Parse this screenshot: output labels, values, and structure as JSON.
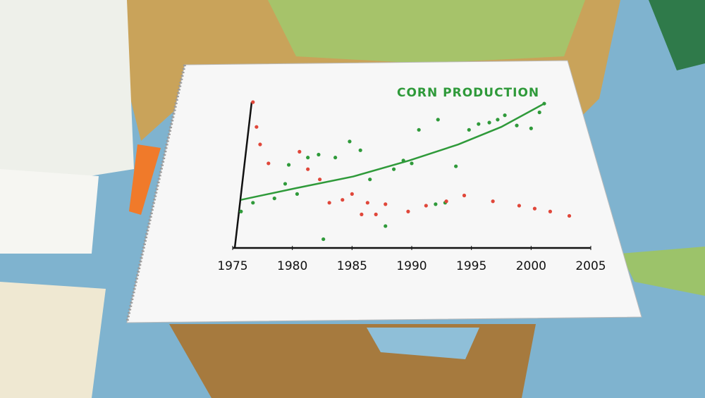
{
  "chart_data": {
    "type": "scatter",
    "title": "CORN PRODUCTION",
    "xlim": [
      1975,
      2005
    ],
    "xticks": [
      1975,
      1980,
      1985,
      1990,
      1995,
      2000,
      2005
    ],
    "ylim": [
      0,
      100
    ],
    "series": [
      {
        "color": "#2f9a3a",
        "x": [
          1975.7,
          1976.7,
          1978.5,
          1979.4,
          1979.7,
          1980.4,
          1981.3,
          1982.2,
          1982.6,
          1983.6,
          1984.8,
          1985.7,
          1986.5,
          1987.8,
          1988.5,
          1989.3,
          1990.0,
          1990.6,
          1992.0,
          1992.2,
          1992.8,
          1993.7,
          1994.8,
          1995.6,
          1996.5,
          1997.2,
          1997.8,
          1998.8,
          2000.0,
          2000.7,
          2001.1
        ],
        "values": [
          25,
          31,
          34,
          44,
          57,
          37,
          62,
          64,
          6,
          62,
          73,
          67,
          47,
          15,
          54,
          60,
          58,
          81,
          30,
          88,
          31,
          56,
          81,
          85,
          86,
          88,
          91,
          84,
          82,
          93,
          99
        ]
      },
      {
        "color": "#e0473a",
        "x": [
          1976.7,
          1977.0,
          1977.3,
          1978.0,
          1980.6,
          1981.3,
          1982.3,
          1983.1,
          1984.2,
          1985.0,
          1985.8,
          1986.3,
          1987.0,
          1987.8,
          1989.7,
          1991.2,
          1992.9,
          1994.4,
          1996.8,
          1999.0,
          2000.3,
          2001.6,
          2003.2
        ],
        "values": [
          100,
          83,
          71,
          58,
          66,
          54,
          47,
          31,
          33,
          37,
          23,
          31,
          23,
          30,
          25,
          29,
          32,
          36,
          32,
          29,
          27,
          25,
          22
        ]
      }
    ],
    "trend": {
      "color": "#2f9a3a",
      "x": [
        1975.7,
        1980.3,
        1985.1,
        1989.8,
        1993.9,
        1997.5,
        2001.1
      ],
      "values": [
        33,
        41,
        49,
        60,
        71,
        83,
        99
      ]
    }
  }
}
